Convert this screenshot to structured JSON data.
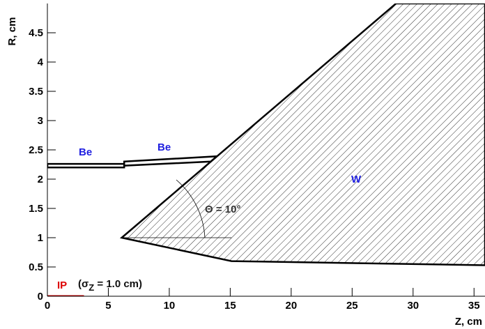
{
  "chart_data": {
    "type": "geometry",
    "x_label": "Z, cm",
    "y_label": "R, cm",
    "xlim": [
      0,
      35.9
    ],
    "ylim": [
      0,
      5
    ],
    "xticks": [
      0,
      5,
      10,
      15,
      20,
      25,
      30,
      35
    ],
    "yticks": [
      0,
      0.5,
      1,
      1.5,
      2,
      2.5,
      3,
      3.5,
      4,
      4.5
    ],
    "series": [
      {
        "color": "#000000",
        "width": 2.5,
        "closed": true,
        "hatch": true,
        "x": [
          6.1,
          28.6,
          35.9,
          35.9,
          15.1
        ],
        "y": [
          1.0,
          5.0,
          5.0,
          0.53,
          0.6
        ]
      },
      {
        "color": "#000000",
        "width": 2.5,
        "closed": true,
        "hatch": false,
        "x": [
          0,
          6.3,
          6.3,
          0
        ],
        "y": [
          2.26,
          2.26,
          2.2,
          2.2
        ]
      },
      {
        "color": "#000000",
        "width": 2.5,
        "closed": true,
        "hatch": false,
        "x": [
          6.3,
          13.9,
          13.4,
          6.3
        ],
        "y": [
          2.3,
          2.39,
          2.3,
          2.23
        ]
      },
      {
        "color": "#000000",
        "width": 0.8,
        "closed": false,
        "hatch": false,
        "x": [
          6.1,
          15.1
        ],
        "y": [
          1,
          1
        ]
      },
      {
        "color": "#cc0000",
        "width": 3,
        "closed": false,
        "hatch": false,
        "x": [
          0,
          3
        ],
        "y": [
          0,
          0
        ]
      }
    ],
    "annotations": {
      "be_pipe": "Be",
      "be_cone": "Be",
      "tungsten": "W",
      "angle": "Θ = 10°",
      "ip": "IP",
      "sigma_open": "(σ",
      "sigma_sub": "Z",
      "sigma_rest": " = 1.0 cm)"
    }
  }
}
